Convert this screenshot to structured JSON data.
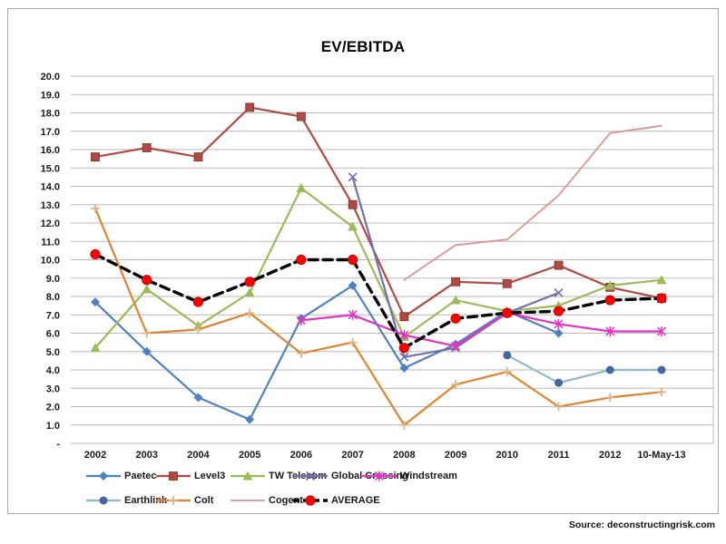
{
  "chart_data": {
    "type": "line",
    "title": "EV/EBITDA",
    "categories": [
      "2002",
      "2003",
      "2004",
      "2005",
      "2006",
      "2007",
      "2008",
      "2009",
      "2010",
      "2011",
      "2012",
      "10-May-13"
    ],
    "ylim": [
      0,
      20
    ],
    "ytick_step": 1.0,
    "ytick_labels": [
      "20.0",
      "19.0",
      "18.0",
      "17.0",
      "16.0",
      "15.0",
      "14.0",
      "13.0",
      "12.0",
      "11.0",
      "10.0",
      "9.0",
      "8.0",
      "7.0",
      "6.0",
      "5.0",
      "4.0",
      "3.0",
      "2.0",
      "1.0",
      "-"
    ],
    "grid": true,
    "legend_position": "bottom",
    "series": [
      {
        "name": "Paetec",
        "color": "#4F81BD",
        "marker": "diamond",
        "values": [
          7.7,
          5.0,
          2.5,
          1.3,
          6.8,
          8.6,
          4.1,
          5.4,
          7.2,
          6.0,
          null,
          null
        ]
      },
      {
        "name": "Level3",
        "color": "#B04A44",
        "marker": "square",
        "values": [
          15.6,
          16.1,
          15.6,
          18.3,
          17.8,
          13.0,
          6.9,
          8.8,
          8.7,
          9.7,
          8.5,
          7.9
        ]
      },
      {
        "name": "TW Telecom",
        "color": "#9BBB59",
        "marker": "triangle",
        "values": [
          5.2,
          8.4,
          6.4,
          8.2,
          13.9,
          11.8,
          5.8,
          7.8,
          7.2,
          7.5,
          8.6,
          8.9
        ]
      },
      {
        "name": "Global Crossing",
        "color": "#7270A8",
        "marker": "x",
        "values": [
          null,
          null,
          null,
          null,
          null,
          14.5,
          4.7,
          5.2,
          7.1,
          8.2,
          null,
          null
        ]
      },
      {
        "name": "Windstream",
        "color": "#E433C4",
        "marker": "star",
        "values": [
          null,
          null,
          null,
          null,
          6.7,
          7.0,
          5.9,
          5.3,
          7.1,
          6.5,
          6.1,
          6.1
        ]
      },
      {
        "name": "Earthlink",
        "color": "#8FB8CE",
        "marker": "circle",
        "marker_fill": "#44679F",
        "values": [
          null,
          null,
          null,
          null,
          null,
          null,
          null,
          null,
          4.8,
          3.3,
          4.0,
          4.0
        ]
      },
      {
        "name": "Colt",
        "color": "#DE8430",
        "marker": "plus",
        "marker_fill": "#E0B287",
        "values": [
          12.8,
          6.0,
          6.2,
          7.1,
          4.9,
          5.5,
          1.0,
          3.2,
          3.9,
          2.0,
          2.5,
          2.8
        ]
      },
      {
        "name": "Cogent",
        "color": "#D99694",
        "marker": "none",
        "width": 1.8,
        "values": [
          null,
          null,
          null,
          null,
          null,
          null,
          8.9,
          10.8,
          11.1,
          13.5,
          16.9,
          17.3
        ]
      },
      {
        "name": "AVERAGE",
        "color": "#000000",
        "marker": "dot",
        "marker_fill": "#FE0000",
        "dash": "10,6",
        "width": 3.4,
        "values": [
          10.3,
          8.9,
          7.7,
          8.8,
          10.0,
          10.0,
          5.2,
          6.8,
          7.1,
          7.2,
          7.8,
          7.9
        ]
      }
    ]
  },
  "legend": {
    "rows": [
      [
        "Paetec",
        "Level3",
        "TW Telecom",
        "Global Crossing",
        "Windstream"
      ],
      [
        "Earthlink",
        "Colt",
        "Cogent",
        "AVERAGE"
      ]
    ]
  },
  "source": "Source: deconstructingrisk.com"
}
